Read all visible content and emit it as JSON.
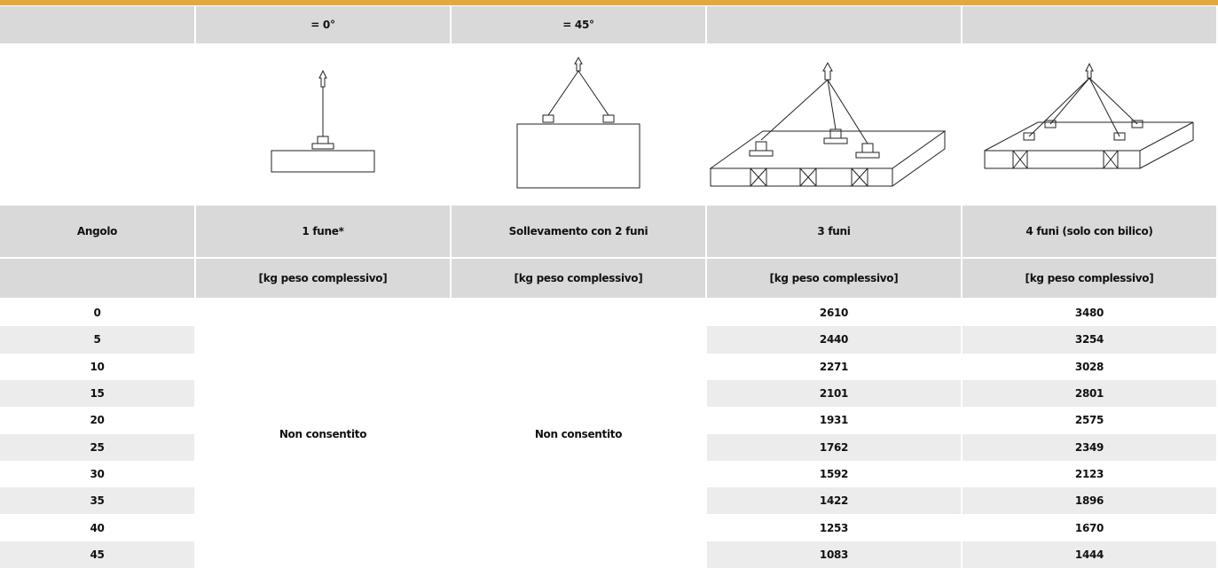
{
  "header": {
    "angle_labels": [
      "= 0°",
      "= 45°"
    ]
  },
  "table": {
    "columns": [
      "Angolo",
      "1 fune*",
      "Sollevamento con 2 funi",
      "3 funi",
      "4 funi (solo con bilico)"
    ],
    "units": [
      "[kg peso complessivo]",
      "[kg peso complessivo]",
      "[kg peso complessivo]",
      "[kg peso complessivo]"
    ],
    "not_allowed": [
      "Non consentito",
      "Non consentito"
    ],
    "rows": [
      [
        0,
        2610,
        3480
      ],
      [
        5,
        2440,
        3254
      ],
      [
        10,
        2271,
        3028
      ],
      [
        15,
        2101,
        2801
      ],
      [
        20,
        1931,
        2575
      ],
      [
        25,
        1762,
        2349
      ],
      [
        30,
        1592,
        2123
      ],
      [
        35,
        1422,
        1896
      ],
      [
        40,
        1253,
        1670
      ],
      [
        45,
        1083,
        1444
      ]
    ]
  }
}
